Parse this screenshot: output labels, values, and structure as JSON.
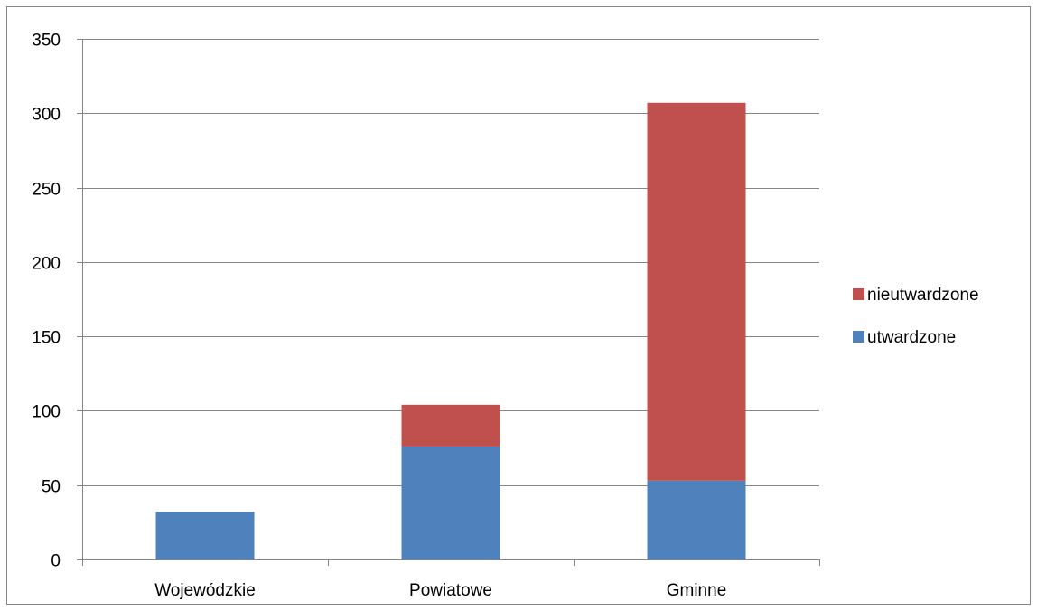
{
  "chart_data": {
    "type": "bar",
    "stacked": true,
    "title": "",
    "xlabel": "",
    "ylabel": "",
    "categories": [
      "Wojewódzkie",
      "Powiatowe",
      "Gminne"
    ],
    "series": [
      {
        "name": "utwardzone",
        "values": [
          32,
          76,
          53
        ],
        "color": "#4f81bd"
      },
      {
        "name": "nieutwardzone",
        "values": [
          0,
          28,
          254
        ],
        "color": "#c0504d"
      }
    ],
    "ylim": [
      0,
      350
    ],
    "yticks": [
      0,
      50,
      100,
      150,
      200,
      250,
      300,
      350
    ],
    "grid": true,
    "legend_position": "right"
  }
}
